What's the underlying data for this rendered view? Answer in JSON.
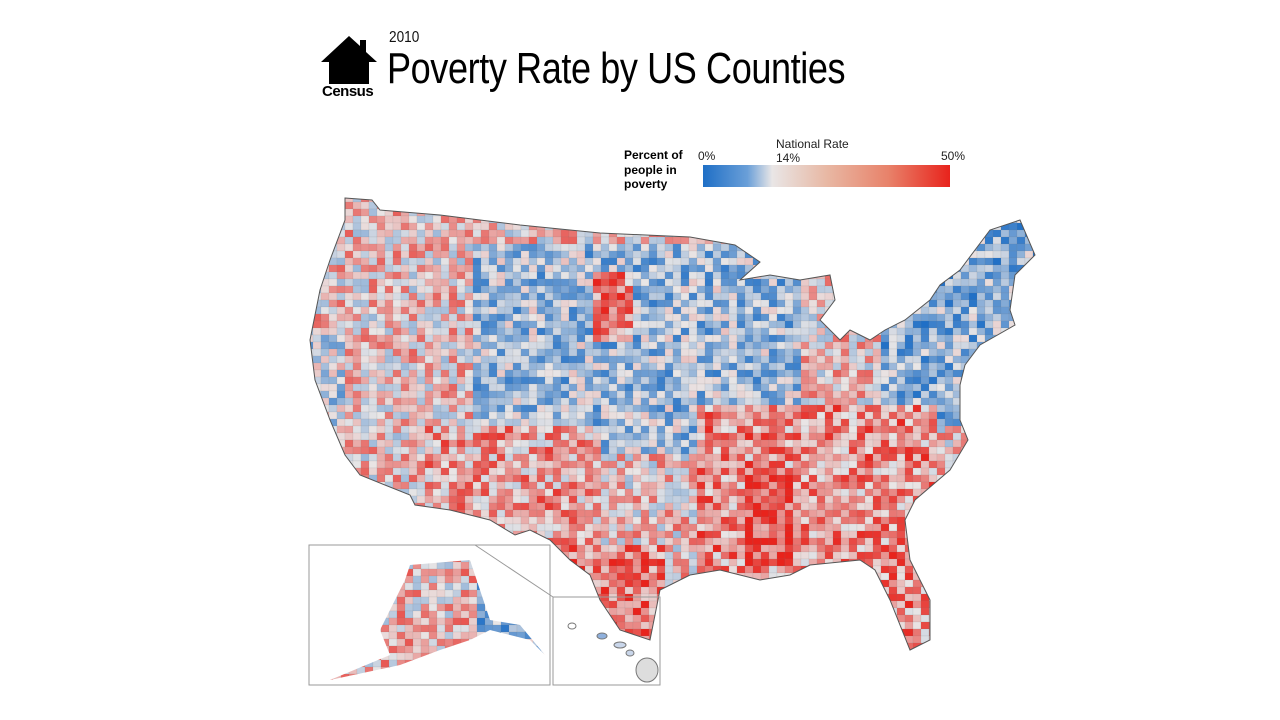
{
  "logo": {
    "text": "Census",
    "icon": "house-icon"
  },
  "header": {
    "year": "2010",
    "title": "Poverty Rate by US Counties"
  },
  "legend": {
    "label": "Percent of people in poverty",
    "min_label": "0%",
    "mid_title": "National Rate",
    "mid_label": "14%",
    "max_label": "50%",
    "colors": {
      "low": "#1f6fc6",
      "mid": "#e9e6e6",
      "high": "#e8231c"
    }
  },
  "map": {
    "region": "United States counties",
    "insets": [
      "Alaska",
      "Hawaii"
    ]
  }
}
